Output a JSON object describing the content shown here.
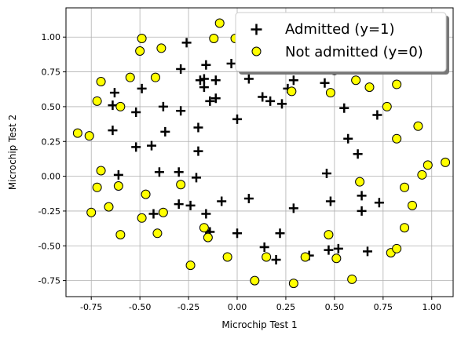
{
  "chart_data": {
    "type": "scatter",
    "xlabel": "Microchip Test 1",
    "ylabel": "Microchip Test 2",
    "xlim": [
      -0.88,
      1.11
    ],
    "ylim": [
      -0.865,
      1.21
    ],
    "xticks": [
      "-0.75",
      "-0.50",
      "-0.25",
      "0.00",
      "0.25",
      "0.50",
      "0.75",
      "1.00"
    ],
    "xtick_values": [
      -0.75,
      -0.5,
      -0.25,
      0.0,
      0.25,
      0.5,
      0.75,
      1.0
    ],
    "yticks": [
      "1.00",
      "0.75",
      "0.50",
      "0.25",
      "0.00",
      "-0.25",
      "-0.50",
      "-0.75"
    ],
    "ytick_values": [
      1.0,
      0.75,
      0.5,
      0.25,
      0.0,
      -0.25,
      -0.5,
      -0.75
    ],
    "grid": true,
    "legend_position": "top-right",
    "series": [
      {
        "name": "Admitted (y=1)",
        "marker": "plus",
        "color": "#000000",
        "points": [
          [
            -0.26,
            0.96
          ],
          [
            -0.16,
            0.8
          ],
          [
            -0.03,
            0.81
          ],
          [
            -0.11,
            0.69
          ],
          [
            -0.17,
            0.7
          ],
          [
            -0.19,
            0.69
          ],
          [
            -0.17,
            0.64
          ],
          [
            -0.29,
            0.77
          ],
          [
            -0.49,
            0.63
          ],
          [
            -0.63,
            0.6
          ],
          [
            -0.64,
            0.51
          ],
          [
            -0.38,
            0.5
          ],
          [
            -0.29,
            0.47
          ],
          [
            -0.52,
            0.46
          ],
          [
            -0.14,
            0.54
          ],
          [
            -0.11,
            0.56
          ],
          [
            -0.37,
            0.32
          ],
          [
            -0.64,
            0.33
          ],
          [
            -0.2,
            0.35
          ],
          [
            0.06,
            0.7
          ],
          [
            0.29,
            0.69
          ],
          [
            0.26,
            0.63
          ],
          [
            0.45,
            0.67
          ],
          [
            0.13,
            0.57
          ],
          [
            0.17,
            0.54
          ],
          [
            0.23,
            0.52
          ],
          [
            0.55,
            0.49
          ],
          [
            0.72,
            0.44
          ],
          [
            0.57,
            0.27
          ],
          [
            0.62,
            0.16
          ],
          [
            -0.52,
            0.21
          ],
          [
            -0.44,
            0.22
          ],
          [
            -0.2,
            0.18
          ],
          [
            -0.4,
            0.03
          ],
          [
            -0.3,
            0.03
          ],
          [
            -0.61,
            0.01
          ],
          [
            0.0,
            0.41
          ],
          [
            -0.21,
            -0.01
          ],
          [
            -0.3,
            -0.2
          ],
          [
            -0.24,
            -0.21
          ],
          [
            -0.08,
            -0.18
          ],
          [
            0.06,
            -0.16
          ],
          [
            0.29,
            -0.23
          ],
          [
            0.46,
            0.02
          ],
          [
            0.48,
            -0.18
          ],
          [
            0.64,
            -0.14
          ],
          [
            0.64,
            -0.25
          ],
          [
            0.73,
            -0.19
          ],
          [
            -0.43,
            -0.27
          ],
          [
            -0.16,
            -0.27
          ],
          [
            -0.16,
            -0.39
          ],
          [
            0.0,
            -0.41
          ],
          [
            -0.14,
            -0.4
          ],
          [
            0.22,
            -0.41
          ],
          [
            0.47,
            -0.53
          ],
          [
            0.52,
            -0.52
          ],
          [
            0.67,
            -0.54
          ],
          [
            0.14,
            -0.51
          ],
          [
            0.37,
            -0.57
          ],
          [
            0.2,
            -0.6
          ]
        ]
      },
      {
        "name": "Not admitted (y=0)",
        "marker": "circle",
        "color": "#ffff00",
        "edge": "#000000",
        "points": [
          [
            -0.09,
            1.1
          ],
          [
            -0.49,
            0.99
          ],
          [
            -0.12,
            0.99
          ],
          [
            -0.01,
            0.99
          ],
          [
            -0.5,
            0.9
          ],
          [
            -0.39,
            0.92
          ],
          [
            -0.7,
            0.68
          ],
          [
            -0.55,
            0.71
          ],
          [
            -0.42,
            0.71
          ],
          [
            -0.72,
            0.54
          ],
          [
            -0.6,
            0.5
          ],
          [
            -0.82,
            0.31
          ],
          [
            -0.76,
            0.29
          ],
          [
            0.1,
            0.77
          ],
          [
            0.22,
            0.77
          ],
          [
            0.5,
            0.76
          ],
          [
            0.61,
            0.69
          ],
          [
            0.68,
            0.64
          ],
          [
            0.82,
            0.66
          ],
          [
            0.28,
            0.61
          ],
          [
            0.48,
            0.6
          ],
          [
            0.77,
            0.5
          ],
          [
            0.93,
            0.36
          ],
          [
            0.82,
            0.27
          ],
          [
            0.98,
            0.08
          ],
          [
            1.07,
            0.1
          ],
          [
            0.95,
            0.01
          ],
          [
            -0.7,
            0.04
          ],
          [
            -0.72,
            -0.08
          ],
          [
            -0.61,
            -0.07
          ],
          [
            -0.29,
            -0.06
          ],
          [
            -0.47,
            -0.13
          ],
          [
            -0.66,
            -0.22
          ],
          [
            -0.75,
            -0.26
          ],
          [
            -0.38,
            -0.26
          ],
          [
            -0.49,
            -0.3
          ],
          [
            0.63,
            -0.04
          ],
          [
            0.86,
            -0.08
          ],
          [
            0.9,
            -0.21
          ],
          [
            -0.6,
            -0.42
          ],
          [
            -0.41,
            -0.41
          ],
          [
            -0.17,
            -0.37
          ],
          [
            -0.15,
            -0.44
          ],
          [
            0.47,
            -0.42
          ],
          [
            0.86,
            -0.37
          ],
          [
            -0.24,
            -0.64
          ],
          [
            -0.05,
            -0.58
          ],
          [
            0.15,
            -0.58
          ],
          [
            0.35,
            -0.58
          ],
          [
            0.51,
            -0.59
          ],
          [
            0.79,
            -0.55
          ],
          [
            0.82,
            -0.52
          ],
          [
            0.09,
            -0.75
          ],
          [
            0.29,
            -0.77
          ],
          [
            0.59,
            -0.74
          ]
        ]
      }
    ]
  }
}
